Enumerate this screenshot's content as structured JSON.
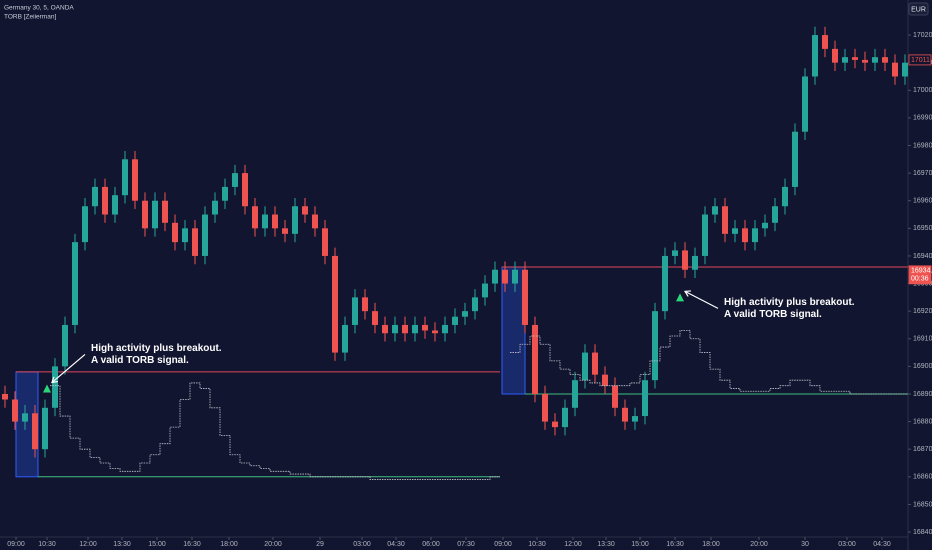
{
  "chart_data": {
    "type": "candlestick",
    "symbol": "Germany 30, 5, OANDA",
    "indicator": "TORB [Zeiierman]",
    "currency": "EUR",
    "up_color": "#26a69a",
    "down_color": "#ef5350",
    "xlim": [
      0,
      90.8
    ],
    "ylim": [
      16838.2,
      17032.7
    ],
    "open": [
      16890,
      16888,
      16880,
      16883,
      16870,
      16885,
      16900,
      16915,
      16945,
      16958,
      16965,
      16955,
      16962,
      16975,
      16960,
      16950,
      16960,
      16952,
      16945,
      16950,
      16940,
      16955,
      16960,
      16965,
      16970,
      16958,
      16950,
      16955,
      16950,
      16948,
      16958,
      16955,
      16950,
      16940,
      16905,
      16915,
      16925,
      16920,
      16915,
      16912,
      16915,
      16912,
      16915,
      16913,
      16912,
      16915,
      16918,
      16920,
      16925,
      16930,
      16935,
      16930,
      16935,
      16915,
      16890,
      16880,
      16878,
      16885,
      16895,
      16905,
      16897,
      16893,
      16885,
      16880,
      16882,
      16895,
      16920,
      16940,
      16942,
      16935,
      16940,
      16955,
      16958,
      16948,
      16950,
      16945,
      16950,
      16952,
      16958,
      16965,
      16985,
      17005,
      17020,
      17015,
      17010,
      17012,
      17011,
      17010,
      17012,
      17010,
      17005
    ],
    "high": [
      16893,
      16891,
      16886,
      16886,
      16888,
      16903,
      16918,
      16948,
      16961,
      16968,
      16968,
      16965,
      16978,
      16978,
      16963,
      16963,
      16963,
      16955,
      16953,
      16953,
      16958,
      16963,
      16968,
      16973,
      16973,
      16961,
      16958,
      16958,
      16953,
      16961,
      16961,
      16958,
      16953,
      16943,
      16918,
      16928,
      16928,
      16923,
      16918,
      16918,
      16918,
      16918,
      16918,
      16916,
      16918,
      16921,
      16923,
      16928,
      16933,
      16938,
      16938,
      16938,
      16938,
      16918,
      16893,
      16883,
      16888,
      16898,
      16908,
      16908,
      16900,
      16896,
      16888,
      16885,
      16898,
      16923,
      16943,
      16945,
      16945,
      16943,
      16958,
      16961,
      16961,
      16953,
      16953,
      16953,
      16955,
      16961,
      16968,
      16988,
      17008,
      17023,
      17023,
      17018,
      17015,
      17015,
      17014,
      17015,
      17015,
      17013,
      17013
    ],
    "low": [
      16885,
      16877,
      16877,
      16867,
      16867,
      16882,
      16897,
      16912,
      16942,
      16955,
      16952,
      16952,
      16959,
      16957,
      16947,
      16947,
      16949,
      16942,
      16942,
      16937,
      16937,
      16952,
      16957,
      16962,
      16955,
      16947,
      16947,
      16947,
      16945,
      16945,
      16952,
      16947,
      16937,
      16902,
      16902,
      16912,
      16917,
      16912,
      16909,
      16909,
      16909,
      16909,
      16910,
      16909,
      16909,
      16912,
      16915,
      16917,
      16922,
      16927,
      16927,
      16927,
      16912,
      16887,
      16877,
      16875,
      16875,
      16882,
      16892,
      16894,
      16890,
      16882,
      16877,
      16877,
      16879,
      16892,
      16917,
      16937,
      16932,
      16932,
      16937,
      16952,
      16945,
      16945,
      16942,
      16942,
      16947,
      16949,
      16955,
      16962,
      16982,
      17002,
      17012,
      17007,
      17007,
      17008,
      17007,
      17007,
      17007,
      17002,
      17002
    ],
    "close": [
      16888,
      16880,
      16883,
      16870,
      16885,
      16900,
      16915,
      16945,
      16958,
      16965,
      16955,
      16962,
      16975,
      16960,
      16950,
      16960,
      16952,
      16945,
      16950,
      16940,
      16955,
      16960,
      16965,
      16970,
      16958,
      16950,
      16955,
      16950,
      16948,
      16958,
      16955,
      16950,
      16940,
      16905,
      16915,
      16925,
      16920,
      16915,
      16912,
      16915,
      16912,
      16915,
      16913,
      16912,
      16915,
      16918,
      16920,
      16925,
      16930,
      16935,
      16930,
      16935,
      16915,
      16890,
      16880,
      16878,
      16885,
      16895,
      16905,
      16897,
      16893,
      16885,
      16880,
      16882,
      16895,
      16920,
      16940,
      16942,
      16935,
      16940,
      16955,
      16958,
      16948,
      16950,
      16945,
      16950,
      16952,
      16958,
      16965,
      16985,
      17005,
      17020,
      17015,
      17010,
      17012,
      17011,
      17010,
      17012,
      17010,
      17005,
      17010
    ],
    "activity": {
      "color": "#c8c8d0",
      "values": [
        null,
        null,
        null,
        null,
        null,
        16893,
        16882,
        16874,
        16870,
        16867,
        16865,
        16863,
        16862,
        16862,
        16865,
        16868,
        16872,
        16878,
        16888,
        16894,
        16892,
        16885,
        16875,
        16868,
        16865,
        16864,
        16863,
        16862,
        16862,
        16861,
        16861,
        16860,
        16860,
        16860,
        16860,
        16860,
        16860,
        16859,
        16859,
        16859,
        16859,
        16859,
        16859,
        16859,
        16859,
        16859,
        16859,
        16859,
        16859,
        16860,
        null,
        16905,
        16908,
        16911,
        16908,
        16902,
        16899,
        16897,
        16895,
        16894,
        16893,
        16893,
        16893,
        16894,
        16897,
        16902,
        16907,
        16911,
        16913,
        16910,
        16905,
        16899,
        16895,
        16892,
        16891,
        16891,
        16891,
        16892,
        16893,
        16895,
        16895,
        16893,
        16891,
        16891,
        16891,
        16890,
        16890,
        16890,
        16890,
        16890,
        16890
      ]
    },
    "opening_ranges": [
      {
        "start": 1.6,
        "end": 3.8,
        "high": 16898,
        "low": 16860,
        "line_end": 50
      },
      {
        "start": 50.2,
        "end": 52.5,
        "high": 16936,
        "low": 16890,
        "line_end": 90.8
      }
    ],
    "signals": [
      {
        "x": 4.7,
        "price": 16892,
        "color": "#2bd67b",
        "text": [
          "High activity plus breakout.",
          "A valid TORB signal."
        ]
      },
      {
        "x": 68.0,
        "price": 16925,
        "color": "#2bd67b",
        "text": [
          "High activity plus breakout.",
          "A valid TORB signal."
        ]
      }
    ],
    "yticks": [
      {
        "value": 16840,
        "label": "16840.0"
      },
      {
        "value": 16850,
        "label": "16850.0"
      },
      {
        "value": 16860,
        "label": "16860.0"
      },
      {
        "value": 16870,
        "label": "16870.0"
      },
      {
        "value": 16880,
        "label": "16880.0"
      },
      {
        "value": 16890,
        "label": "16890.0"
      },
      {
        "value": 16900,
        "label": "16900.0"
      },
      {
        "value": 16910,
        "label": "16910.0"
      },
      {
        "value": 16920,
        "label": "16920.0"
      },
      {
        "value": 16930,
        "label": "16930.0"
      },
      {
        "value": 16940,
        "label": "16940.0"
      },
      {
        "value": 16950,
        "label": "16950.0"
      },
      {
        "value": 16960,
        "label": "16960.0"
      },
      {
        "value": 16970,
        "label": "16970.0"
      },
      {
        "value": 16980,
        "label": "16980.0"
      },
      {
        "value": 16990,
        "label": "16990.0"
      },
      {
        "value": 17000,
        "label": "17000.0"
      },
      {
        "value": 17010,
        "label": "17010.0"
      },
      {
        "value": 17020,
        "label": "17020.0"
      }
    ],
    "xticks": [
      {
        "value": 1.6,
        "label": "09:00"
      },
      {
        "value": 4.7,
        "label": "10:30"
      },
      {
        "value": 8.8,
        "label": "12:00"
      },
      {
        "value": 12.2,
        "label": "13:30"
      },
      {
        "value": 15.7,
        "label": "15:00"
      },
      {
        "value": 19.2,
        "label": "16:30"
      },
      {
        "value": 22.9,
        "label": "18:00"
      },
      {
        "value": 27.3,
        "label": "20:00"
      },
      {
        "value": 32,
        "label": "29"
      },
      {
        "value": 36.2,
        "label": "03:00"
      },
      {
        "value": 39.6,
        "label": "04:30"
      },
      {
        "value": 43.1,
        "label": "06:00"
      },
      {
        "value": 46.6,
        "label": "07:30"
      },
      {
        "value": 50.3,
        "label": "09:00"
      },
      {
        "value": 53.7,
        "label": "10:30"
      },
      {
        "value": 57.3,
        "label": "12:00"
      },
      {
        "value": 60.6,
        "label": "13:30"
      },
      {
        "value": 64,
        "label": "15:00"
      },
      {
        "value": 67.5,
        "label": "16:30"
      },
      {
        "value": 71.1,
        "label": "18:00"
      },
      {
        "value": 75.9,
        "label": "20:00"
      },
      {
        "value": 80.5,
        "label": "30"
      },
      {
        "value": 84.7,
        "label": "03:00"
      },
      {
        "value": 88.2,
        "label": "04:30"
      }
    ],
    "price_tags": [
      {
        "value": 17011,
        "label": "17011.0",
        "style": "outline"
      },
      {
        "value": 16934.6,
        "label": "16934.6",
        "countdown": "00:36",
        "style": "fill"
      }
    ]
  }
}
